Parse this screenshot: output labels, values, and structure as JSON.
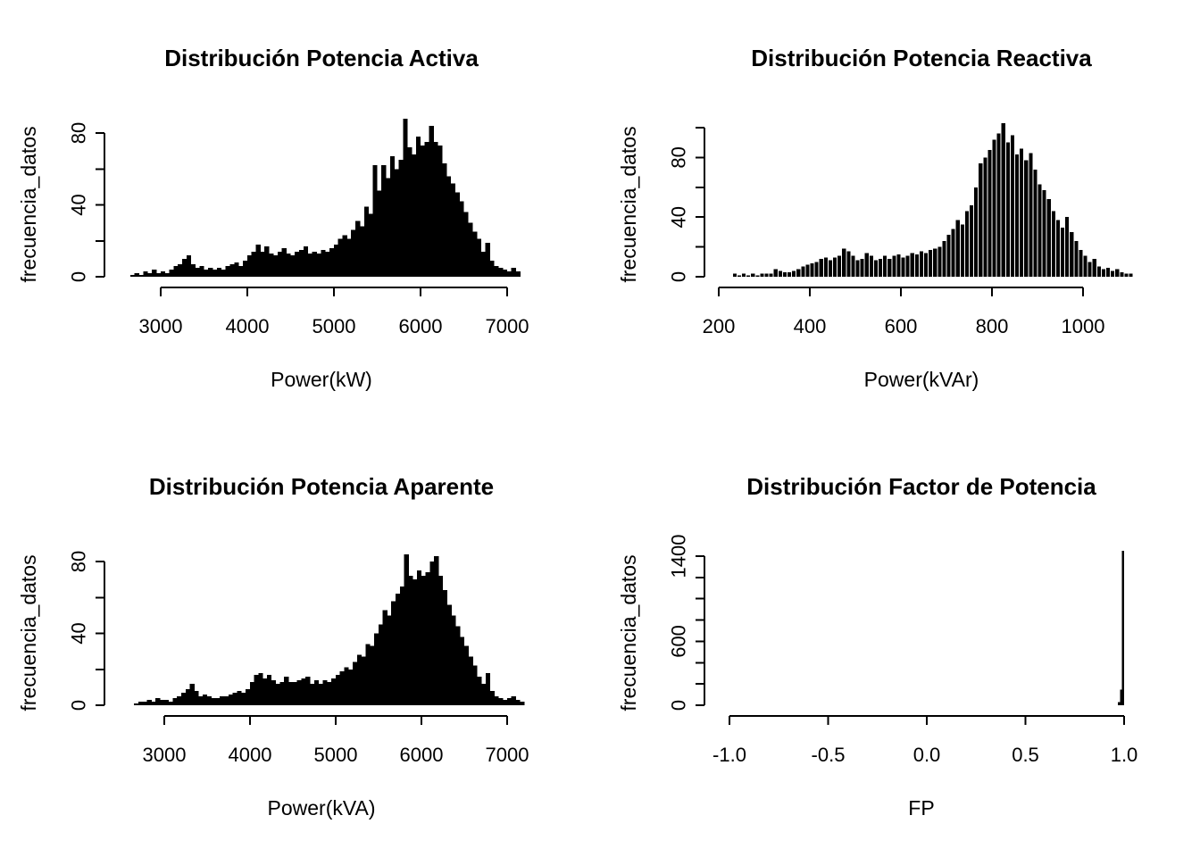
{
  "background": "#ffffff",
  "text_color": "#000000",
  "chart_data": [
    {
      "type": "histogram",
      "title": "Distribución Potencia Activa",
      "xlabel": "Power(kW)",
      "ylabel": "frecuencia_datos",
      "bar_color": "#000000",
      "bin_start": 2650,
      "bin_width": 50,
      "counts": [
        1,
        2,
        1,
        3,
        2,
        4,
        2,
        3,
        2,
        4,
        6,
        7,
        10,
        12,
        7,
        5,
        6,
        4,
        5,
        4,
        5,
        4,
        6,
        7,
        8,
        6,
        9,
        12,
        14,
        18,
        14,
        17,
        13,
        12,
        14,
        16,
        13,
        12,
        14,
        15,
        17,
        13,
        14,
        13,
        15,
        14,
        16,
        18,
        21,
        23,
        21,
        26,
        31,
        28,
        39,
        35,
        62,
        48,
        62,
        55,
        67,
        60,
        65,
        88,
        72,
        68,
        78,
        73,
        75,
        84,
        75,
        73,
        63,
        56,
        52,
        47,
        42,
        36,
        30,
        25,
        21,
        14,
        19,
        9,
        6,
        5,
        4,
        3,
        5,
        3
      ],
      "xlim": [
        2650,
        7150
      ],
      "x_ticks": [
        3000,
        4000,
        5000,
        6000,
        7000
      ],
      "x_tick_labels": [
        "3000",
        "4000",
        "5000",
        "6000",
        "7000"
      ],
      "y_ticks": [
        0,
        20,
        40,
        60,
        80
      ],
      "y_tick_labels": [
        "0",
        "",
        "40",
        "",
        "80"
      ],
      "legend": null,
      "grid": false
    },
    {
      "type": "histogram",
      "title": "Distribución Potencia Reactiva",
      "xlabel": "Power(kVAr)",
      "ylabel": "frecuencia_datos",
      "bar_color": "#000000",
      "bin_start": 230,
      "bin_width": 10,
      "counts": [
        2,
        1,
        2,
        1,
        2,
        1,
        2,
        2,
        2,
        5,
        4,
        3,
        3,
        4,
        5,
        7,
        8,
        9,
        10,
        12,
        13,
        11,
        13,
        14,
        19,
        17,
        14,
        11,
        12,
        16,
        14,
        11,
        12,
        14,
        12,
        14,
        15,
        13,
        14,
        16,
        15,
        17,
        16,
        18,
        19,
        20,
        24,
        28,
        32,
        38,
        35,
        44,
        48,
        60,
        76,
        80,
        85,
        92,
        96,
        103,
        90,
        95,
        82,
        86,
        78,
        83,
        72,
        62,
        58,
        52,
        44,
        38,
        33,
        40,
        30,
        24,
        18,
        14,
        10,
        12,
        7,
        5,
        6,
        4,
        5,
        3,
        2,
        2
      ],
      "xlim": [
        230,
        1110
      ],
      "x_ticks": [
        200,
        400,
        600,
        800,
        1000
      ],
      "x_tick_labels": [
        "200",
        "400",
        "600",
        "800",
        "1000"
      ],
      "y_ticks": [
        0,
        20,
        40,
        60,
        80,
        100
      ],
      "y_tick_labels": [
        "0",
        "",
        "40",
        "",
        "80",
        ""
      ],
      "legend": null,
      "grid": false
    },
    {
      "type": "histogram",
      "title": "Distribución Potencia Aparente",
      "xlabel": "Power(kVA)",
      "ylabel": "frecuencia_datos",
      "bar_color": "#000000",
      "bin_start": 2650,
      "bin_width": 50,
      "counts": [
        1,
        2,
        2,
        3,
        2,
        4,
        3,
        3,
        2,
        4,
        5,
        7,
        9,
        12,
        8,
        5,
        6,
        5,
        4,
        4,
        5,
        5,
        6,
        7,
        8,
        7,
        9,
        13,
        17,
        18,
        15,
        17,
        14,
        12,
        13,
        16,
        13,
        13,
        14,
        15,
        16,
        12,
        14,
        12,
        14,
        13,
        15,
        17,
        19,
        21,
        20,
        24,
        28,
        27,
        34,
        33,
        40,
        45,
        53,
        50,
        58,
        62,
        66,
        84,
        72,
        70,
        75,
        72,
        74,
        80,
        83,
        72,
        64,
        56,
        50,
        44,
        38,
        33,
        27,
        22,
        16,
        12,
        18,
        8,
        5,
        4,
        3,
        4,
        5,
        3,
        2
      ],
      "xlim": [
        2650,
        7200
      ],
      "x_ticks": [
        3000,
        4000,
        5000,
        6000,
        7000
      ],
      "x_tick_labels": [
        "3000",
        "4000",
        "5000",
        "6000",
        "7000"
      ],
      "y_ticks": [
        0,
        20,
        40,
        60,
        80
      ],
      "y_tick_labels": [
        "0",
        "",
        "40",
        "",
        "80"
      ],
      "legend": null,
      "grid": false
    },
    {
      "type": "histogram",
      "title": "Distribución Factor de Potencia",
      "xlabel": "FP",
      "ylabel": "frecuencia_datos",
      "bar_color": "#000000",
      "bin_start": 0.97,
      "bin_width": 0.01,
      "counts": [
        30,
        145,
        1450
      ],
      "xlim": [
        -1.0,
        1.0
      ],
      "x_ticks": [
        -1.0,
        -0.5,
        0.0,
        0.5,
        1.0
      ],
      "x_tick_labels": [
        "-1.0",
        "-0.5",
        "0.0",
        "0.5",
        "1.0"
      ],
      "y_ticks": [
        0,
        200,
        400,
        600,
        800,
        1000,
        1200,
        1400
      ],
      "y_tick_labels": [
        "0",
        "",
        "",
        "600",
        "",
        "",
        "",
        "1400"
      ],
      "legend": null,
      "grid": false
    }
  ]
}
